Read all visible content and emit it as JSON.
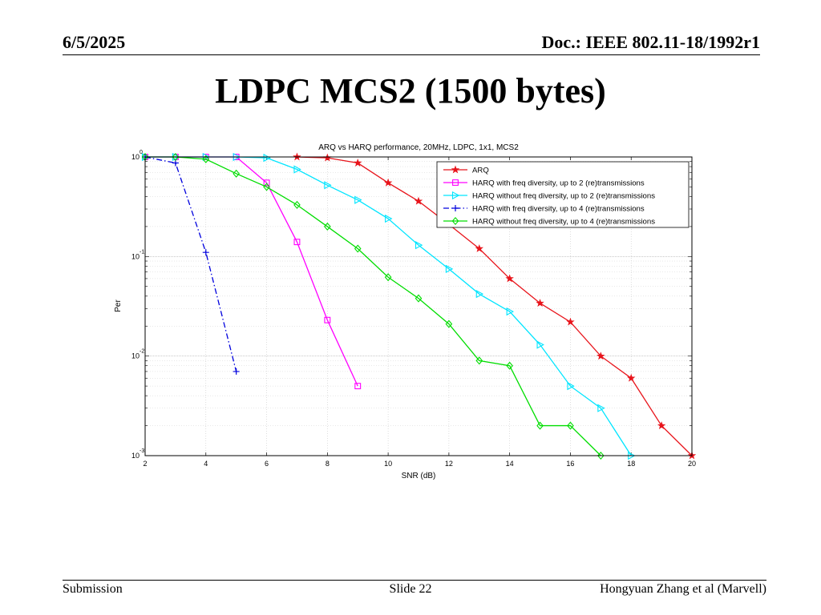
{
  "header": {
    "date": "6/5/2025",
    "doc": "Doc.: IEEE 802.11-18/1992r1"
  },
  "slide": {
    "title": "LDPC MCS2 (1500 bytes)"
  },
  "footer": {
    "left": "Submission",
    "center": "Slide 22",
    "right": "Hongyuan Zhang et al (Marvell)"
  },
  "chart_data": {
    "type": "line",
    "title": "ARQ vs HARQ performance, 20MHz, LDPC, 1x1, MCS2",
    "xlabel": "SNR (dB)",
    "ylabel": "Per",
    "xlim": [
      2,
      20
    ],
    "ylim": [
      0.001,
      1
    ],
    "yscale": "log",
    "grid": true,
    "legend_position": "top-right",
    "x_ticks": [
      "2",
      "4",
      "6",
      "8",
      "10",
      "12",
      "14",
      "16",
      "18",
      "20"
    ],
    "y_ticks": [
      {
        "base": "10",
        "exp": "0",
        "value": 1
      },
      {
        "base": "10",
        "exp": "-1",
        "value": 0.1
      },
      {
        "base": "10",
        "exp": "-2",
        "value": 0.01
      },
      {
        "base": "10",
        "exp": "-3",
        "value": 0.001
      }
    ],
    "series": [
      {
        "name": "ARQ",
        "color": "#e8141b",
        "marker": "star",
        "dash": "solid",
        "x": [
          7,
          8,
          9,
          10,
          11,
          12,
          13,
          14,
          15,
          16,
          17,
          18,
          19,
          20
        ],
        "y": [
          1,
          0.98,
          0.87,
          0.55,
          0.36,
          0.21,
          0.12,
          0.06,
          0.034,
          0.022,
          0.01,
          0.006,
          0.002,
          0.001
        ]
      },
      {
        "name": "HARQ with freq diversity, up to 2 (re)transmissions",
        "color": "#ff00ff",
        "marker": "square",
        "dash": "solid",
        "x": [
          2,
          3,
          4,
          5,
          6,
          7,
          8,
          9
        ],
        "y": [
          1,
          1,
          1,
          1,
          0.55,
          0.14,
          0.023,
          0.005
        ]
      },
      {
        "name": "HARQ without freq diversity, up to 2 (re)transmissions",
        "color": "#00e5ff",
        "marker": "triangle-right",
        "dash": "solid",
        "x": [
          2,
          3,
          4,
          5,
          6,
          7,
          8,
          9,
          10,
          11,
          12,
          13,
          14,
          15,
          16,
          17,
          18
        ],
        "y": [
          1,
          1,
          1,
          1,
          0.98,
          0.75,
          0.52,
          0.37,
          0.24,
          0.13,
          0.075,
          0.042,
          0.028,
          0.013,
          0.005,
          0.003,
          0.001
        ]
      },
      {
        "name": "HARQ with freq diversity, up to 4 (re)transmissions",
        "color": "#0000dd",
        "marker": "plus",
        "dash": "dashdot",
        "x": [
          2,
          3,
          4,
          5
        ],
        "y": [
          1,
          0.87,
          0.11,
          0.007
        ]
      },
      {
        "name": "HARQ without freq diversity, up to 4 (re)transmissions",
        "color": "#00dd00",
        "marker": "diamond",
        "dash": "solid",
        "x": [
          2,
          3,
          4,
          5,
          6,
          7,
          8,
          9,
          10,
          11,
          12,
          13,
          14,
          15,
          16,
          17
        ],
        "y": [
          1,
          1,
          0.95,
          0.68,
          0.5,
          0.33,
          0.2,
          0.12,
          0.062,
          0.038,
          0.021,
          0.009,
          0.008,
          0.002,
          0.002,
          0.001
        ]
      }
    ]
  }
}
